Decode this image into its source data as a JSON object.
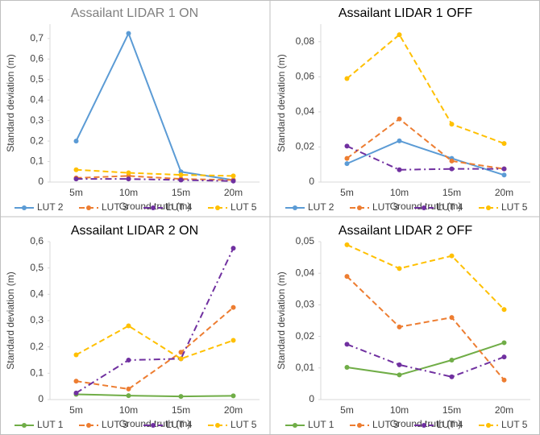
{
  "chart_data": [
    {
      "type": "line",
      "title": "Assailant LIDAR 1 ON",
      "title_color": "#7f7f7f",
      "x_label": "Ground truth (m)",
      "y_label": "Standard deviation (m)",
      "categories": [
        "5m",
        "10m",
        "15m",
        "20m"
      ],
      "ylim": [
        0,
        0.77
      ],
      "yticks": [
        0,
        {
          "value": 0.1,
          "label": "0,1"
        },
        {
          "value": 0.2,
          "label": "0,2"
        },
        {
          "value": 0.3,
          "label": "0,3"
        },
        {
          "value": 0.4,
          "label": "0,4"
        },
        {
          "value": 0.5,
          "label": "0,5"
        },
        {
          "value": 0.6,
          "label": "0,6"
        },
        {
          "value": 0.7,
          "label": "0,7"
        }
      ],
      "series": [
        {
          "name": "LUT 2",
          "color": "#5b9bd5",
          "dash": "solid",
          "values": [
            0.2,
            0.725,
            0.05,
            0.01
          ]
        },
        {
          "name": "LUT 3",
          "color": "#ed7d31",
          "dash": "dashed",
          "values": [
            0.02,
            0.03,
            0.015,
            0.01
          ]
        },
        {
          "name": "LUT 4",
          "color": "#7030a0",
          "dash": "dashdot",
          "values": [
            0.015,
            0.015,
            0.01,
            0.005
          ]
        },
        {
          "name": "LUT 5",
          "color": "#ffc000",
          "dash": "dashed",
          "values": [
            0.06,
            0.045,
            0.035,
            0.03
          ]
        }
      ]
    },
    {
      "type": "line",
      "title": "Assailant LIDAR 1 OFF",
      "title_color": "#000000",
      "x_label": "Ground truth (m)",
      "y_label": "Standard deviation (m)",
      "categories": [
        "5m",
        "10m",
        "15m",
        "20m"
      ],
      "ylim": [
        0,
        0.09
      ],
      "yticks": [
        0,
        {
          "value": 0.02,
          "label": "0,02"
        },
        {
          "value": 0.04,
          "label": "0,04"
        },
        {
          "value": 0.06,
          "label": "0,06"
        },
        {
          "value": 0.08,
          "label": "0,08"
        }
      ],
      "series": [
        {
          "name": "LUT 2",
          "color": "#5b9bd5",
          "dash": "solid",
          "values": [
            0.0105,
            0.0235,
            0.0135,
            0.004
          ]
        },
        {
          "name": "LUT 3",
          "color": "#ed7d31",
          "dash": "dashed",
          "values": [
            0.0135,
            0.036,
            0.012,
            0.0075
          ]
        },
        {
          "name": "LUT 4",
          "color": "#7030a0",
          "dash": "dashdot",
          "values": [
            0.0205,
            0.007,
            0.0075,
            0.0075
          ]
        },
        {
          "name": "LUT 5",
          "color": "#ffc000",
          "dash": "dashed",
          "values": [
            0.059,
            0.084,
            0.033,
            0.022
          ]
        }
      ]
    },
    {
      "type": "line",
      "title": "Assailant LIDAR 2 ON",
      "title_color": "#000000",
      "x_label": "Ground truth (m)",
      "y_label": "Standard deviation (m)",
      "categories": [
        "5m",
        "10m",
        "15m",
        "20m"
      ],
      "ylim": [
        0,
        0.6
      ],
      "yticks": [
        0,
        {
          "value": 0.1,
          "label": "0,1"
        },
        {
          "value": 0.2,
          "label": "0,2"
        },
        {
          "value": 0.3,
          "label": "0,3"
        },
        {
          "value": 0.4,
          "label": "0,4"
        },
        {
          "value": 0.5,
          "label": "0,5"
        },
        {
          "value": 0.6,
          "label": "0,6"
        }
      ],
      "series": [
        {
          "name": "LUT 1",
          "color": "#70ad47",
          "dash": "solid",
          "values": [
            0.02,
            0.015,
            0.012,
            0.014
          ]
        },
        {
          "name": "LUT 3",
          "color": "#ed7d31",
          "dash": "dashed",
          "values": [
            0.07,
            0.04,
            0.18,
            0.35
          ]
        },
        {
          "name": "LUT 4",
          "color": "#7030a0",
          "dash": "dashdot",
          "values": [
            0.025,
            0.15,
            0.155,
            0.575
          ]
        },
        {
          "name": "LUT 5",
          "color": "#ffc000",
          "dash": "dashed",
          "values": [
            0.17,
            0.28,
            0.155,
            0.225
          ]
        }
      ]
    },
    {
      "type": "line",
      "title": "Assailant LIDAR 2 OFF",
      "title_color": "#000000",
      "x_label": "Ground truth (m)",
      "y_label": "Standard deviation (m)",
      "categories": [
        "5m",
        "10m",
        "15m",
        "20m"
      ],
      "ylim": [
        0,
        0.05
      ],
      "yticks": [
        0,
        {
          "value": 0.01,
          "label": "0,01"
        },
        {
          "value": 0.02,
          "label": "0,02"
        },
        {
          "value": 0.03,
          "label": "0,03"
        },
        {
          "value": 0.04,
          "label": "0,04"
        },
        {
          "value": 0.05,
          "label": "0,05"
        }
      ],
      "series": [
        {
          "name": "LUT 1",
          "color": "#70ad47",
          "dash": "solid",
          "values": [
            0.0102,
            0.0078,
            0.0125,
            0.018
          ]
        },
        {
          "name": "LUT 3",
          "color": "#ed7d31",
          "dash": "dashed",
          "values": [
            0.039,
            0.023,
            0.026,
            0.0062
          ]
        },
        {
          "name": "LUT 4",
          "color": "#7030a0",
          "dash": "dashdot",
          "values": [
            0.0175,
            0.011,
            0.0072,
            0.0135
          ]
        },
        {
          "name": "LUT 5",
          "color": "#ffc000",
          "dash": "dashed",
          "values": [
            0.049,
            0.0415,
            0.0455,
            0.0285
          ]
        }
      ]
    }
  ]
}
